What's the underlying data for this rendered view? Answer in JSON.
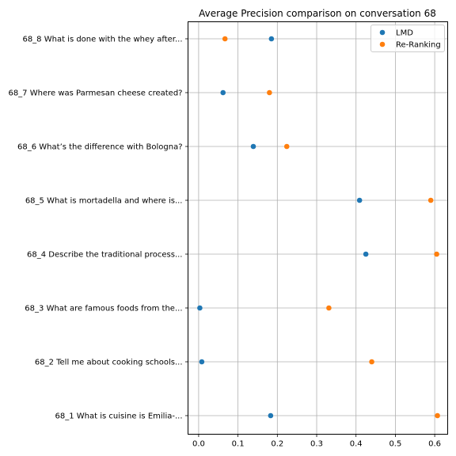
{
  "chart_data": {
    "type": "scatter",
    "title": "Average Precision comparison on conversation 68",
    "xlabel": "",
    "ylabel": "",
    "xlim": [
      -0.027,
      0.633
    ],
    "xticks": [
      0.0,
      0.1,
      0.2,
      0.3,
      0.4,
      0.5,
      0.6
    ],
    "xtick_labels": [
      "0.0",
      "0.1",
      "0.2",
      "0.3",
      "0.4",
      "0.5",
      "0.6"
    ],
    "grid": true,
    "legend_position": "top-right",
    "categories": [
      "68_1 What is cuisine is Emilia-...",
      "68_2 Tell me about cooking schools...",
      "68_3 What are famous foods from the...",
      "68_4 Describe the traditional process...",
      "68_5 What is mortadella and where is...",
      "68_6 What’s the difference with Bologna?",
      "68_7 Where was Parmesan cheese created?",
      "68_8 What is done with the whey after..."
    ],
    "series": [
      {
        "name": "LMD",
        "color": "#1f77b4",
        "values": [
          0.183,
          0.008,
          0.003,
          0.425,
          0.409,
          0.139,
          0.062,
          0.185
        ]
      },
      {
        "name": "Re-Ranking",
        "color": "#ff7f0e",
        "values": [
          0.607,
          0.44,
          0.331,
          0.605,
          0.59,
          0.224,
          0.18,
          0.067
        ]
      }
    ]
  }
}
